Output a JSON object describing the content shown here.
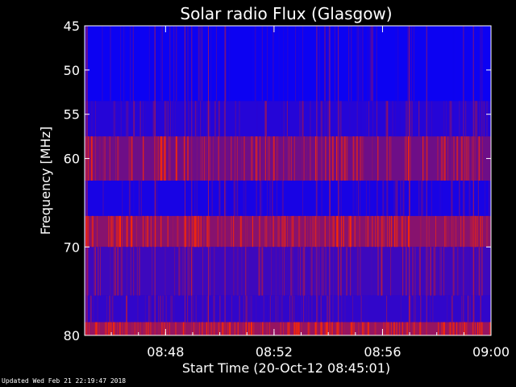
{
  "chart_data": {
    "type": "heatmap",
    "title": "Solar radio Flux (Glasgow)",
    "xlabel": "Start Time (20-Oct-12 08:45:01)",
    "ylabel": "Frequency [MHz]",
    "x_range": [
      "08:45:01",
      "09:00"
    ],
    "x_ticks": [
      "08:48",
      "08:52",
      "08:56",
      "09:00"
    ],
    "y_range": [
      45,
      80
    ],
    "y_axis_inverted": true,
    "y_ticks": [
      45,
      50,
      55,
      60,
      70,
      80
    ],
    "colormap": {
      "low": "#0000ff",
      "mid": "#7a0f7a",
      "high": "#ff2a00"
    },
    "bands": [
      {
        "f_start": 45.0,
        "f_end": 53.5,
        "level": 0.05
      },
      {
        "f_start": 53.5,
        "f_end": 57.5,
        "level": 0.15
      },
      {
        "f_start": 57.5,
        "f_end": 62.5,
        "level": 0.45
      },
      {
        "f_start": 62.5,
        "f_end": 66.5,
        "level": 0.1
      },
      {
        "f_start": 66.5,
        "f_end": 70.0,
        "level": 0.55
      },
      {
        "f_start": 70.0,
        "f_end": 75.5,
        "level": 0.25
      },
      {
        "f_start": 75.5,
        "f_end": 78.5,
        "level": 0.2
      },
      {
        "f_start": 78.5,
        "f_end": 80.0,
        "level": 0.6
      }
    ]
  },
  "footer": "Updated Wed Feb 21 22:19:47 2018",
  "colors": {
    "background": "#000000",
    "axes": "#ffffff"
  }
}
